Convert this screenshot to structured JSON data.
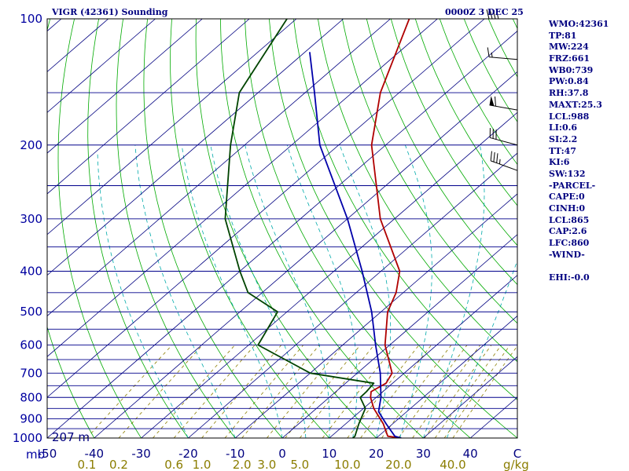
{
  "header": {
    "station": "VIGR (42361) Sounding",
    "time": "0000Z  3 DEC 25"
  },
  "indices": [
    "WMO:42361",
    "TP:81",
    "MW:224",
    "FRZ:661",
    "WB0:739",
    "PW:0.84",
    "RH:37.8",
    "MAXT:25.3",
    "LCL:988",
    "LI:0.6",
    "SI:2.2",
    "TT:47",
    "KI:6",
    "SW:132",
    "-PARCEL-",
    "CAPE:0",
    "CINH:0",
    "LCL:865",
    "CAP:2.6",
    "LFC:860",
    "-WIND-",
    "",
    "EHI:-0.0"
  ],
  "colors": {
    "isobar": "#00008b",
    "isotherm": "#000080",
    "dry_adiabat": "#00aa00",
    "moist_adiabat": "#00aaaa",
    "mixing_ratio": "#8b7d00",
    "temperature": "#b00000",
    "dewpoint": "#004400",
    "parcel": "#0000aa",
    "frame": "#000000"
  },
  "chart_data": {
    "type": "line",
    "title": "VIGR (42361) Sounding",
    "ylabel": "mb",
    "y_scale": "log",
    "ylim": [
      1000,
      100
    ],
    "xlim": [
      -50,
      50
    ],
    "pressure_ticks": [
      100,
      200,
      300,
      400,
      500,
      600,
      700,
      800,
      900,
      1000
    ],
    "pressure_tick_labels": [
      "100",
      "200",
      "300",
      "400",
      "500",
      "600",
      "700",
      "800",
      "900",
      "1000"
    ],
    "temperature_ticks": [
      -50,
      -40,
      -30,
      -20,
      -10,
      0,
      10,
      20,
      30,
      40,
      50
    ],
    "temperature_tick_labels": [
      "-50",
      "-40",
      "-30",
      "-20",
      "-10",
      "0",
      "10",
      "20",
      "30",
      "40",
      "C"
    ],
    "mixing_ratio_ticks": [
      0.1,
      0.2,
      0.6,
      1.0,
      2.0,
      3.0,
      5.0,
      10.0,
      20.0,
      40.0
    ],
    "mixing_ratio_tick_labels": [
      "0.1",
      "0.2",
      "0.6",
      "1.0",
      "2.0",
      "3.0",
      "5.0",
      "10.0",
      "20.0",
      "40.0"
    ],
    "mixing_ratio_unit": "g/kg",
    "surface_height_label": "207 m",
    "series": [
      {
        "pressure": [
          1000,
          990,
          925,
          850,
          800,
          775,
          740,
          700,
          600,
          500,
          450,
          400,
          300,
          200,
          150,
          100
        ],
        "value": [
          25.3,
          22.0,
          18.0,
          12.2,
          8.8,
          7.5,
          8.6,
          7.4,
          -1.0,
          -8.6,
          -11.5,
          -16.0,
          -33.0,
          -53.0,
          -64.0,
          -76.0
        ]
      },
      {
        "pressure": [
          1000,
          990,
          925,
          850,
          800,
          775,
          740,
          700,
          600,
          500,
          450,
          400,
          300,
          200,
          150,
          100
        ],
        "value": [
          15.0,
          15.0,
          12.8,
          10.4,
          6.6,
          6.5,
          6.0,
          -10.0,
          -28.0,
          -32.0,
          -43.0,
          -50.0,
          -66.0,
          -83.0,
          -94.0,
          -102.0
        ]
      },
      {
        "pressure": [
          1000,
          990,
          925,
          865,
          800,
          700,
          600,
          500,
          400,
          300,
          200,
          150,
          120
        ],
        "value": [
          25.3,
          23.5,
          18.6,
          14.0,
          11.0,
          4.9,
          -3.0,
          -12.0,
          -24.0,
          -40.0,
          -64.0,
          -78.0,
          -89.0
        ]
      }
    ],
    "winds": [
      {
        "pressure": 100,
        "direction_deg": 270,
        "speed_kt": 35
      },
      {
        "pressure": 125,
        "direction_deg": 275,
        "speed_kt": 15
      },
      {
        "pressure": 165,
        "direction_deg": 280,
        "speed_kt": 60
      },
      {
        "pressure": 200,
        "direction_deg": 285,
        "speed_kt": 30
      },
      {
        "pressure": 230,
        "direction_deg": 290,
        "speed_kt": 35
      }
    ]
  }
}
